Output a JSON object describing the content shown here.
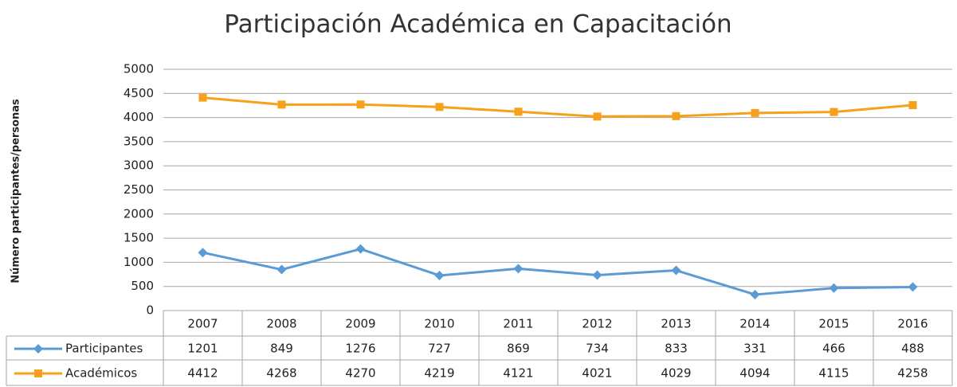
{
  "chart_data": {
    "type": "line",
    "title": "Participación Académica en Capacitación",
    "y_label": "Número participantes/personas",
    "categories": [
      "2007",
      "2008",
      "2009",
      "2010",
      "2011",
      "2012",
      "2013",
      "2014",
      "2015",
      "2016"
    ],
    "series": [
      {
        "name": "Participantes",
        "color": "#5b9bd5",
        "marker": "diamond",
        "values": [
          1201,
          849,
          1276,
          727,
          869,
          734,
          833,
          331,
          466,
          488
        ]
      },
      {
        "name": "Académicos",
        "color": "#f7a11a",
        "marker": "square",
        "values": [
          4412,
          4268,
          4270,
          4219,
          4121,
          4021,
          4029,
          4094,
          4115,
          4258
        ]
      }
    ],
    "ylim": [
      0,
      5000
    ],
    "yticks": [
      0,
      500,
      1000,
      1500,
      2000,
      2500,
      3000,
      3500,
      4000,
      4500,
      5000
    ],
    "grid": true
  }
}
